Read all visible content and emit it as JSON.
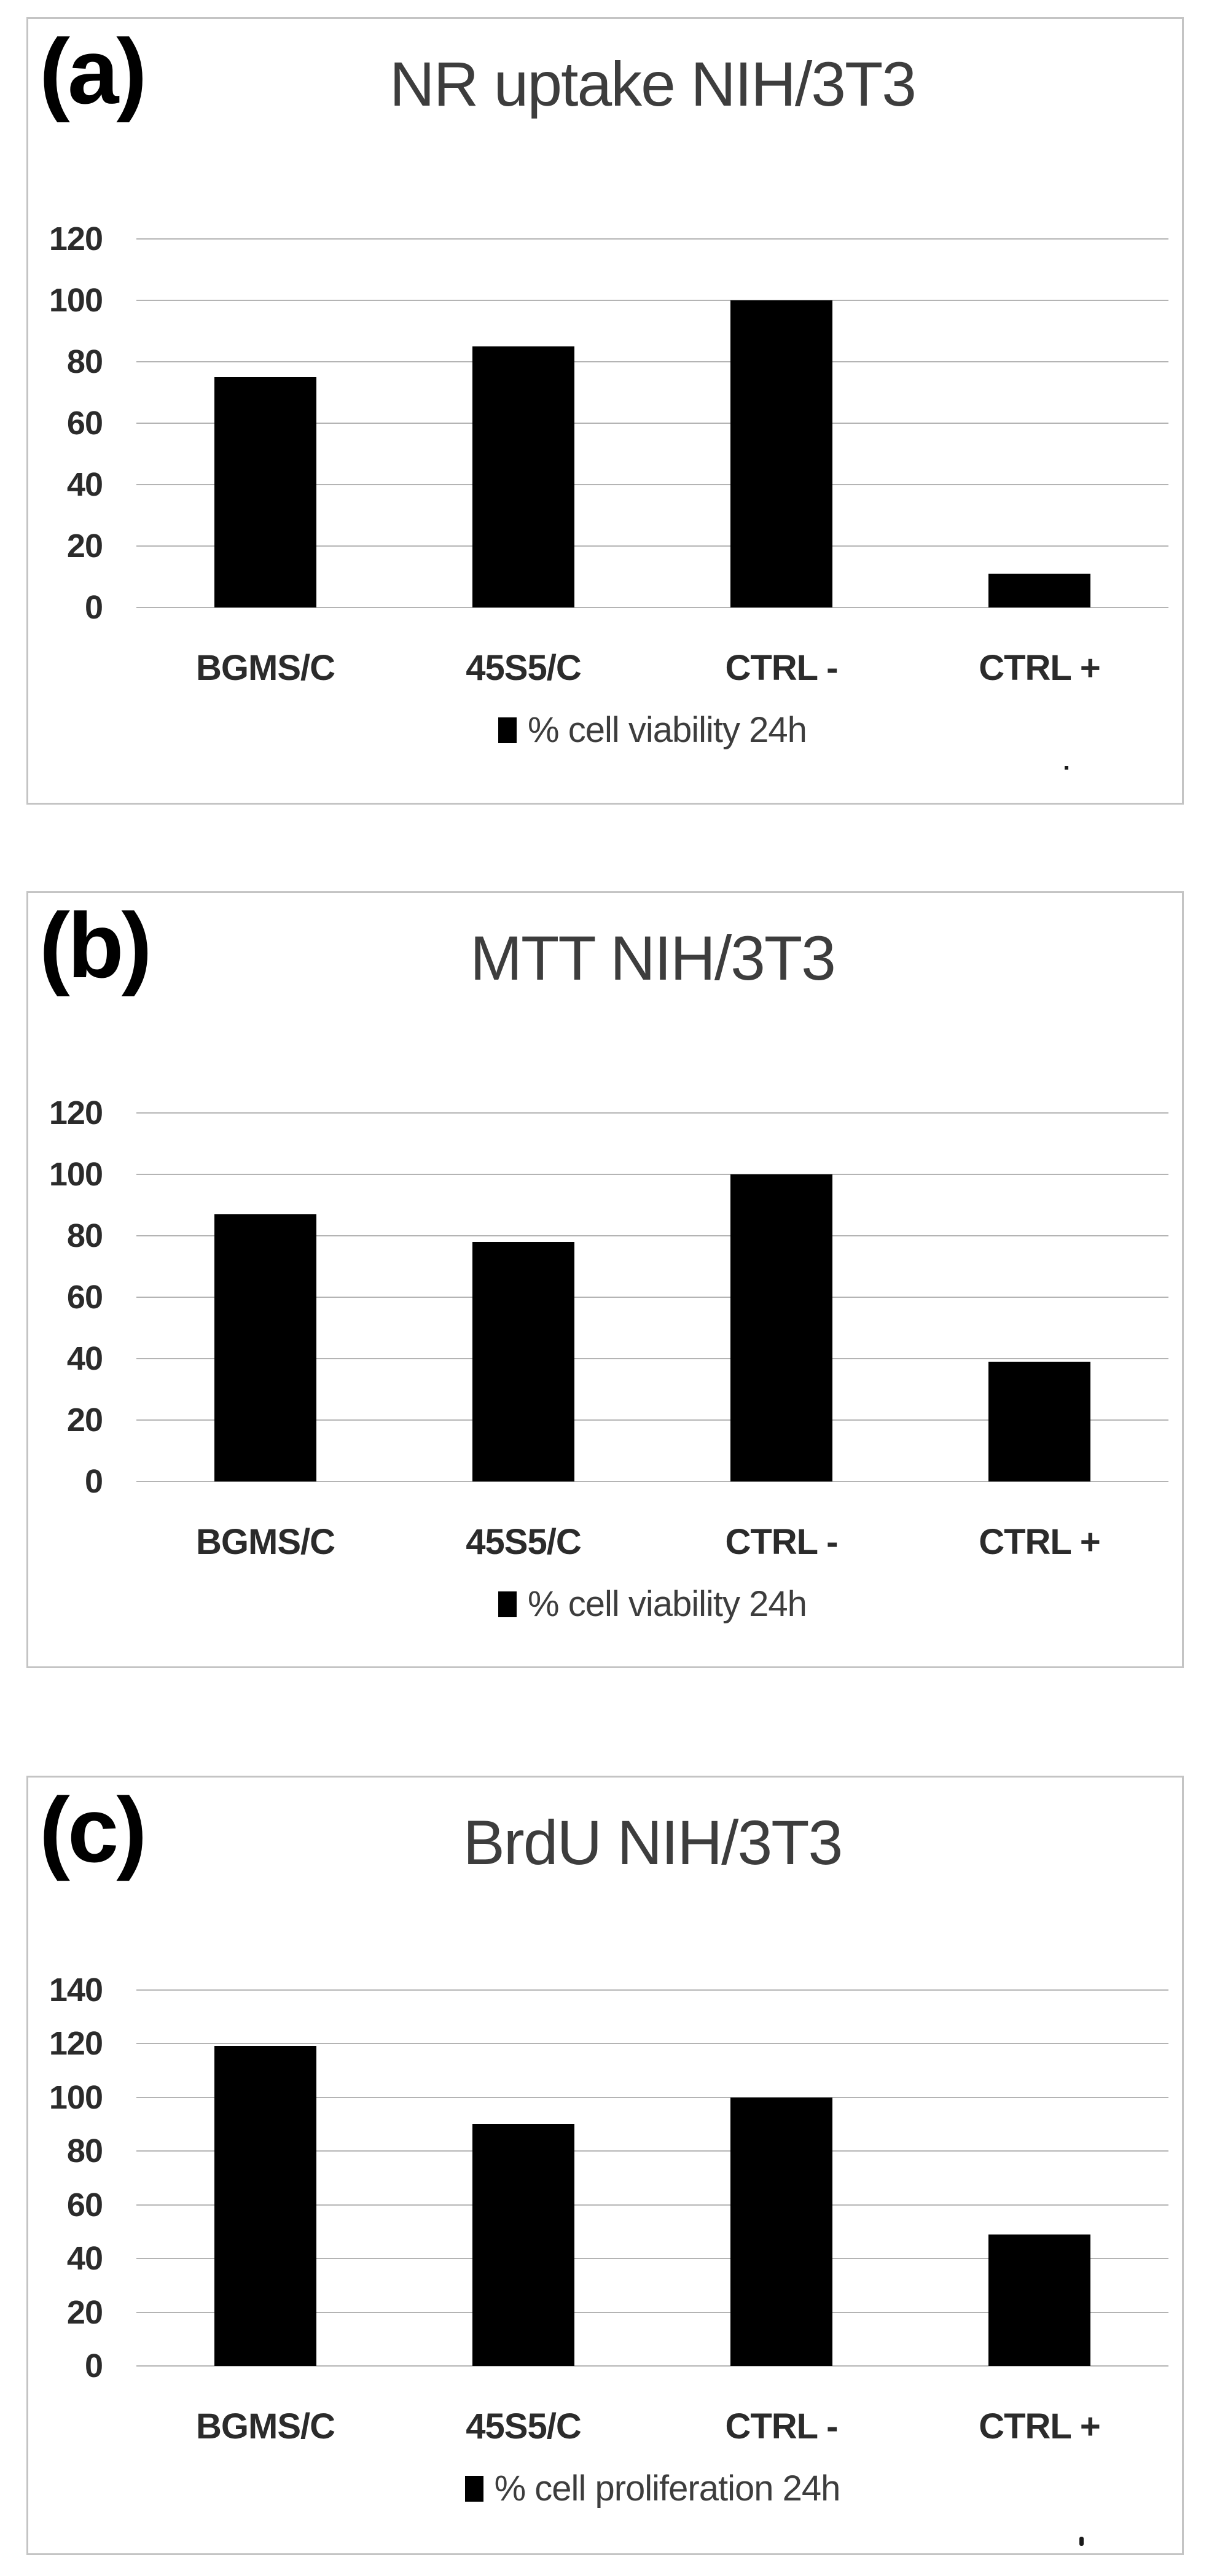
{
  "figure": {
    "description_labels": [
      "(a)",
      "(b)",
      "(c)"
    ]
  },
  "colors": {
    "bar": "#000000",
    "gridline": "#b4b4b4",
    "panel_border": "#c4c4c4",
    "title_text": "#3d3d3d",
    "axis_text": "#2b2b2b",
    "background": "#ffffff"
  },
  "chart_data": [
    {
      "type": "bar",
      "panel_label": "(a)",
      "title": "NR uptake NIH/3T3",
      "categories": [
        "BGMS/C",
        "45S5/C",
        "CTRL -",
        "CTRL +"
      ],
      "values": [
        75,
        85,
        100,
        11
      ],
      "legend": "% cell viability 24h",
      "xlabel": "",
      "ylabel": "",
      "ylim": [
        0,
        120
      ],
      "ytick_step": 20,
      "yticks": [
        0,
        20,
        40,
        60,
        80,
        100,
        120
      ],
      "grid": true,
      "legend_position": "bottom",
      "bar_color": "#000000"
    },
    {
      "type": "bar",
      "panel_label": "(b)",
      "title": "MTT NIH/3T3",
      "categories": [
        "BGMS/C",
        "45S5/C",
        "CTRL -",
        "CTRL +"
      ],
      "values": [
        87,
        78,
        100,
        39
      ],
      "legend": "% cell viability 24h",
      "xlabel": "",
      "ylabel": "",
      "ylim": [
        0,
        120
      ],
      "ytick_step": 20,
      "yticks": [
        0,
        20,
        40,
        60,
        80,
        100,
        120
      ],
      "grid": true,
      "legend_position": "bottom",
      "bar_color": "#000000"
    },
    {
      "type": "bar",
      "panel_label": "(c)",
      "title": "BrdU NIH/3T3",
      "categories": [
        "BGMS/C",
        "45S5/C",
        "CTRL -",
        "CTRL +"
      ],
      "values": [
        119,
        90,
        100,
        49
      ],
      "legend": "% cell proliferation 24h",
      "xlabel": "",
      "ylabel": "",
      "ylim": [
        0,
        140
      ],
      "ytick_step": 20,
      "yticks": [
        0,
        20,
        40,
        60,
        80,
        100,
        120,
        140
      ],
      "grid": true,
      "legend_position": "bottom",
      "bar_color": "#000000"
    }
  ]
}
